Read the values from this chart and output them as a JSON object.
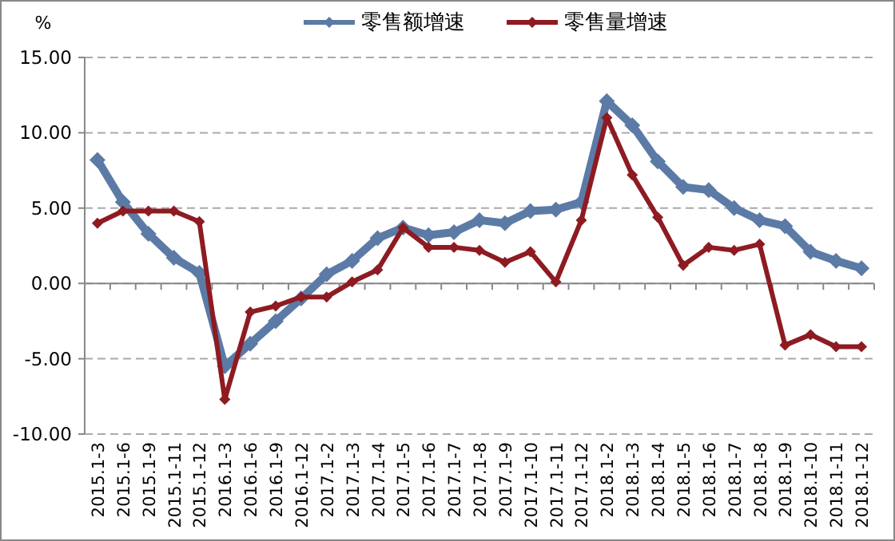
{
  "chart_data": {
    "type": "line",
    "ylabel": "%",
    "categories": [
      "2015.1-3",
      "2015.1-6",
      "2015.1-9",
      "2015.1-11",
      "2015.1-12",
      "2016.1-3",
      "2016.1-6",
      "2016.1-9",
      "2016.1-12",
      "2017.1-2",
      "2017.1-3",
      "2017.1-4",
      "2017.1-5",
      "2017.1-6",
      "2017.1-7",
      "2017.1-8",
      "2017.1-9",
      "2017.1-10",
      "2017.1-11",
      "2017.1-12",
      "2018.1-2",
      "2018.1-3",
      "2018.1-4",
      "2018.1-5",
      "2018.1-6",
      "2018.1-7",
      "2018.1-8",
      "2018.1-9",
      "2018.1-10",
      "2018.1-11",
      "2018.1-12"
    ],
    "series": [
      {
        "name": "零售额增速",
        "color": "#5b7ba6",
        "values": [
          8.2,
          5.4,
          3.3,
          1.7,
          0.7,
          -5.5,
          -4.0,
          -2.5,
          -1.0,
          0.6,
          1.5,
          3.0,
          3.7,
          3.2,
          3.4,
          4.2,
          4.0,
          4.8,
          4.9,
          5.4,
          12.1,
          10.5,
          8.1,
          6.4,
          6.2,
          5.0,
          4.2,
          3.8,
          2.1,
          1.5,
          1.0
        ]
      },
      {
        "name": "零售量增速",
        "color": "#8e1b22",
        "values": [
          4.0,
          4.8,
          4.8,
          4.8,
          4.1,
          -7.7,
          -1.9,
          -1.5,
          -0.9,
          -0.9,
          0.1,
          0.9,
          3.7,
          2.4,
          2.4,
          2.2,
          1.4,
          2.1,
          0.1,
          4.2,
          11.0,
          7.2,
          4.4,
          1.2,
          2.4,
          2.2,
          2.6,
          -4.1,
          -3.4,
          -4.2,
          -4.2
        ]
      }
    ],
    "ylim": [
      -10,
      15
    ],
    "yticks": [
      {
        "value": -10,
        "label": "-10.00"
      },
      {
        "value": -5,
        "label": "-5.00"
      },
      {
        "value": 0,
        "label": "0.00"
      },
      {
        "value": 5,
        "label": "5.00"
      },
      {
        "value": 10,
        "label": "10.00"
      },
      {
        "value": 15,
        "label": "15.00"
      }
    ],
    "grid": "y",
    "legend": "top",
    "marker": "diamond",
    "line_style": "solid"
  }
}
